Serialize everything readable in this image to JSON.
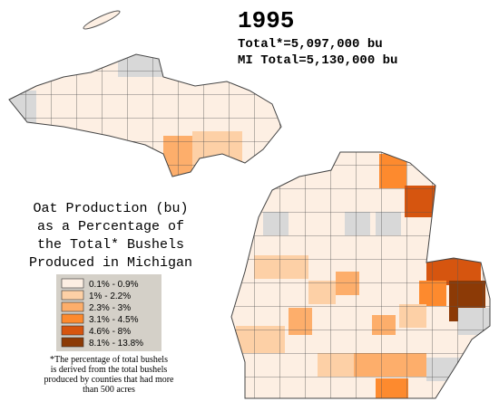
{
  "title": "1995",
  "totals": [
    "Total*=5,097,000 bu",
    "MI Total=5,130,000 bu"
  ],
  "heading": [
    "Oat Production (bu)",
    "as a Percentage of",
    "the Total* Bushels",
    "Produced in Michigan"
  ],
  "legend": [
    {
      "label": "0.1% - 0.9%",
      "color": "#fdefe3"
    },
    {
      "label": "1% - 2.2%",
      "color": "#fdd0a6"
    },
    {
      "label": "2.3% - 3%",
      "color": "#fdae6b"
    },
    {
      "label": "3.1% - 4.5%",
      "color": "#fd8a2e"
    },
    {
      "label": "4.6% - 8%",
      "color": "#d6550f"
    },
    {
      "label": "8.1% - 13.8%",
      "color": "#8c3a06"
    }
  ],
  "footnote": [
    "*The percentage of total bushels",
    "is derived from the total bushels",
    "produced by counties that had more",
    "than 500 acres"
  ]
}
